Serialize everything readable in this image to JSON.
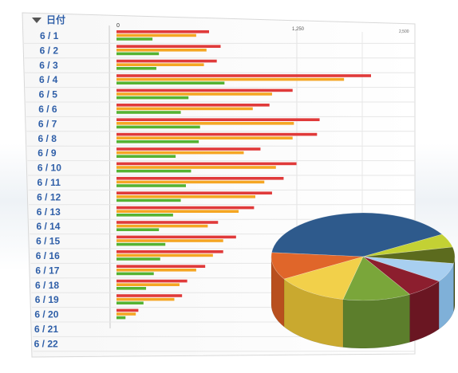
{
  "header": {
    "column_title": "日付",
    "sort_icon": "triangle-down-icon"
  },
  "chart_data": {
    "type": "bar",
    "axis_ticks": [
      "0",
      "1,250",
      "2,500"
    ],
    "xlim": [
      0,
      2500
    ],
    "categories": [
      "6 / 1",
      "6 / 2",
      "6 / 3",
      "6 / 4",
      "6 / 5",
      "6 / 6",
      "6 / 7",
      "6 / 8",
      "6 / 9",
      "6 / 10",
      "6 / 11",
      "6 / 12",
      "6 / 13",
      "6 / 14",
      "6 / 15",
      "6 / 16",
      "6 / 17",
      "6 / 18",
      "6 / 19",
      "6 / 20",
      "6 / 21",
      "6 / 22"
    ],
    "series": [
      {
        "color": "#e03a3a",
        "values": [
          720,
          810,
          780,
          1980,
          1370,
          1190,
          1580,
          1560,
          1120,
          1400,
          1300,
          1210,
          1070,
          790,
          930,
          830,
          690,
          550,
          510,
          170,
          0,
          0
        ]
      },
      {
        "color": "#f5a623",
        "values": [
          620,
          700,
          680,
          1770,
          1210,
          1060,
          1380,
          1370,
          990,
          1240,
          1150,
          1080,
          950,
          710,
          830,
          750,
          620,
          490,
          450,
          150,
          0,
          0
        ]
      },
      {
        "color": "#55b332",
        "values": [
          280,
          330,
          310,
          840,
          560,
          500,
          650,
          640,
          460,
          580,
          540,
          500,
          440,
          330,
          380,
          340,
          290,
          230,
          210,
          70,
          0,
          0
        ]
      }
    ]
  },
  "pie": {
    "type": "pie",
    "slices": [
      {
        "color": "#2e5a8c",
        "side": "#22466f",
        "value": 40
      },
      {
        "color": "#c3d134",
        "side": "#9aa52a",
        "value": 5
      },
      {
        "color": "#5c6b1e",
        "side": "#3f4a14",
        "value": 6
      },
      {
        "color": "#a8cff0",
        "side": "#7fb0d8",
        "value": 7
      },
      {
        "color": "#8c1e2e",
        "side": "#6a1622",
        "value": 7
      },
      {
        "color": "#7aa63a",
        "side": "#5c7e2c",
        "value": 12
      },
      {
        "color": "#f2d04a",
        "side": "#c9a92f",
        "value": 13
      },
      {
        "color": "#e0662a",
        "side": "#b84f1e",
        "value": 10
      }
    ]
  }
}
